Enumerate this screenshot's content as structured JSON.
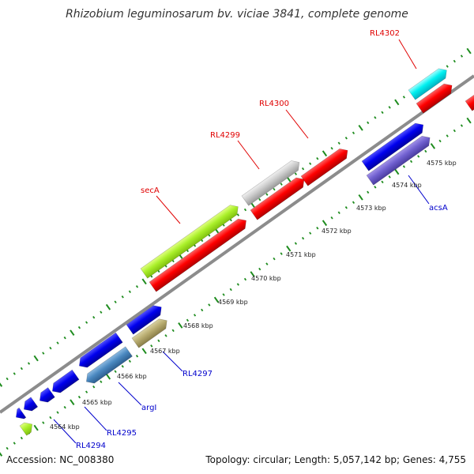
{
  "title": "Rhizobium leguminosarum bv. viciae 3841, complete genome",
  "accession": "Accession: NC_008380",
  "topology": "Topology: circular; Length: 5,057,142 bp; Genes: 4,755",
  "colors": {
    "backbone": "#8c8c8c",
    "tick_dots": "#1e8c1e",
    "red_label": "#e00000",
    "blue_label": "#0000cc"
  },
  "tick_labels": [
    {
      "id": "4564",
      "label": "4564 kbp"
    },
    {
      "id": "4565",
      "label": "4565 kbp"
    },
    {
      "id": "4566",
      "label": "4566 kbp"
    },
    {
      "id": "4567",
      "label": "4567 kbp"
    },
    {
      "id": "4568",
      "label": "4568 kbp"
    },
    {
      "id": "4569",
      "label": "4569 kbp"
    },
    {
      "id": "4570",
      "label": "4570 kbp"
    },
    {
      "id": "4571",
      "label": "4571 kbp"
    },
    {
      "id": "4572",
      "label": "4572 kbp"
    },
    {
      "id": "4573",
      "label": "4573 kbp"
    },
    {
      "id": "4574",
      "label": "4574 kbp"
    },
    {
      "id": "4575",
      "label": "4575 kbp"
    }
  ],
  "gene_labels": [
    {
      "id": "rl4302",
      "label": "RL4302"
    },
    {
      "id": "rl4300",
      "label": "RL4300"
    },
    {
      "id": "rl4299",
      "label": "RL4299"
    },
    {
      "id": "seca",
      "label": "secA"
    },
    {
      "id": "acsa",
      "label": "acsA"
    },
    {
      "id": "rl4297",
      "label": "RL4297"
    },
    {
      "id": "argi",
      "label": "argI"
    },
    {
      "id": "rl4295",
      "label": "RL4295"
    },
    {
      "id": "rl4294",
      "label": "RL4294"
    }
  ]
}
